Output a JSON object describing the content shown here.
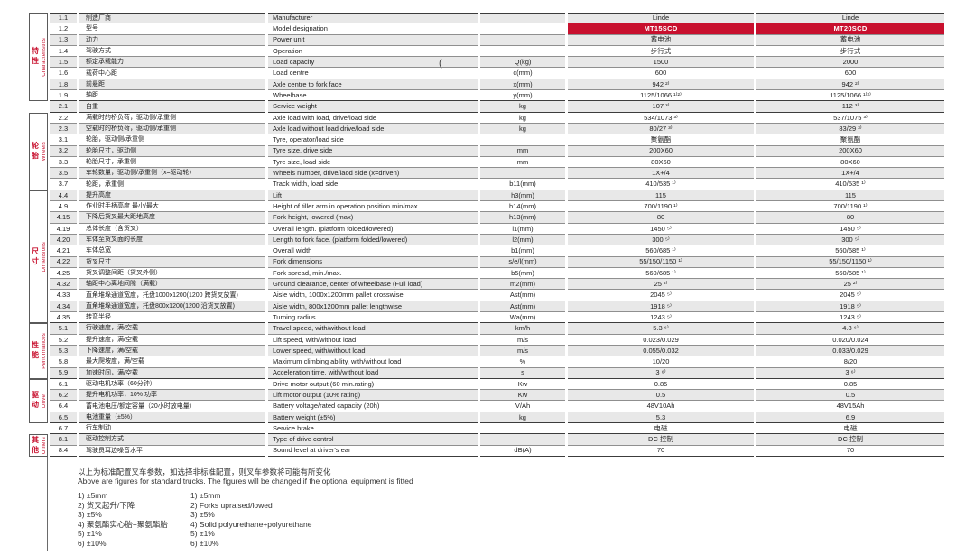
{
  "accent_color": "#c8102e",
  "row_shade_color": "#e8e8e8",
  "stray_mark": "(",
  "table": {
    "sections": [
      {
        "cn": "特性",
        "en": "Characteristics",
        "start": 0,
        "rows": 8
      },
      {
        "cn": "轮胎",
        "en": "Wheels",
        "start": 9,
        "rows": 7
      },
      {
        "cn": "尺寸",
        "en": "Dimensions",
        "start": 16,
        "rows": 12
      },
      {
        "cn": "性能",
        "en": "Performances",
        "start": 28,
        "rows": 5
      },
      {
        "cn": "驱动",
        "en": "Drive",
        "start": 33,
        "rows": 4
      },
      {
        "cn": "其他",
        "en": "Others",
        "start": 38,
        "rows": 2
      }
    ],
    "rows": [
      {
        "no": "1.1",
        "cn": "制造厂商",
        "en": "Manufacturer",
        "unit": "",
        "v1": "Linde",
        "v2": "Linde"
      },
      {
        "no": "1.2",
        "cn": "型号",
        "en": "Model designation",
        "unit": "",
        "v1": "MT15SCD",
        "v2": "MT20SCD",
        "model": true
      },
      {
        "no": "1.3",
        "cn": "动力",
        "en": "Power unit",
        "unit": "",
        "v1": "蓄电池",
        "v2": "蓄电池"
      },
      {
        "no": "1.4",
        "cn": "驾驶方式",
        "en": "Operation",
        "unit": "",
        "v1": "步行式",
        "v2": "步行式"
      },
      {
        "no": "1.5",
        "cn": "额定承载能力",
        "en": "Load capacity",
        "unit": "Q(kg)",
        "v1": "1500",
        "v2": "2000"
      },
      {
        "no": "1.6",
        "cn": "载荷中心距",
        "en": "Load centre",
        "unit": "c(mm)",
        "v1": "600",
        "v2": "600"
      },
      {
        "no": "1.8",
        "cn": "前悬距",
        "en": "Axle centre to fork face",
        "unit": "x(mm)",
        "v1": "942 ²⁾",
        "v2": "942 ²⁾"
      },
      {
        "no": "1.9",
        "cn": "轴距",
        "en": "Wheelbase",
        "unit": "y(mm)",
        "v1": "1125/1066 ¹⁾²⁾",
        "v2": "1125/1066 ¹⁾²⁾",
        "section_end": true
      },
      {
        "no": "2.1",
        "cn": "自重",
        "en": "Service weight",
        "unit": "kg",
        "v1": "107 ³⁾",
        "v2": "112 ³⁾",
        "section_end": true
      },
      {
        "no": "2.2",
        "cn": "满载时的桥负荷，驱动侧/承重侧",
        "en": "Axle load with load, drive/load side",
        "unit": "kg",
        "v1": "534/1073 ³⁾",
        "v2": "537/1075 ³⁾"
      },
      {
        "no": "2.3",
        "cn": "空载时的桥负荷，驱动侧/承重侧",
        "en": "Axle load without load drive/load side",
        "unit": "kg",
        "v1": "80/27 ³⁾",
        "v2": "83/29 ³⁾"
      },
      {
        "no": "3.1",
        "cn": "轮胎，驱动侧/承重侧",
        "en": "Tyre, operator/load side",
        "unit": "",
        "v1": "聚氨酯",
        "v2": "聚氨酯"
      },
      {
        "no": "3.2",
        "cn": "轮胎尺寸，驱动侧",
        "en": "Tyre size, drive side",
        "unit": "mm",
        "v1": "200X60",
        "v2": "200X60"
      },
      {
        "no": "3.3",
        "cn": "轮胎尺寸，承重侧",
        "en": "Tyre size, load side",
        "unit": "mm",
        "v1": "80X60",
        "v2": "80X60"
      },
      {
        "no": "3.5",
        "cn": "车轮数量，驱动侧/承重侧（x=驱动轮）",
        "en": "Wheels number, drive/laod side (x=driven)",
        "unit": "",
        "v1": "1X+/4",
        "v2": "1X+/4"
      },
      {
        "no": "3.7",
        "cn": "轮距，承重侧",
        "en": "Track width, load side",
        "unit": "b11(mm)",
        "v1": "410/535 ¹⁾",
        "v2": "410/535 ¹⁾",
        "section_end": true
      },
      {
        "no": "4.4",
        "cn": "提升高度",
        "en": "Lift",
        "unit": "h3(mm)",
        "v1": "115",
        "v2": "115"
      },
      {
        "no": "4.9",
        "cn": "作业时手柄高度 最小/最大",
        "en": "Height of tiller arm in operation position min/max",
        "unit": "h14(mm)",
        "v1": "700/1190 ¹⁾",
        "v2": "700/1190 ¹⁾"
      },
      {
        "no": "4.15",
        "cn": "下降后货叉最大距地高度",
        "en": "Fork height, lowered (max)",
        "unit": "h13(mm)",
        "v1": "80",
        "v2": "80"
      },
      {
        "no": "4.19",
        "cn": "总体长度（含货叉）",
        "en": "Overall length. (platform folded/lowered)",
        "unit": "l1(mm)",
        "v1": "1450 ⁵⁾",
        "v2": "1450 ⁵⁾"
      },
      {
        "no": "4.20",
        "cn": "车体至货叉面的长度",
        "en": "Length to fork face. (platform folded/lowered)",
        "unit": "l2(mm)",
        "v1": "300 ⁵⁾",
        "v2": "300 ⁵⁾"
      },
      {
        "no": "4.21",
        "cn": "车体总宽",
        "en": "Overall width",
        "unit": "b1(mm)",
        "v1": "560/685 ¹⁾",
        "v2": "560/685 ¹⁾"
      },
      {
        "no": "4.22",
        "cn": "货叉尺寸",
        "en": "Fork dimensions",
        "unit": "s/e/l(mm)",
        "v1": "55/150/1150 ¹⁾",
        "v2": "55/150/1150 ¹⁾"
      },
      {
        "no": "4.25",
        "cn": "货叉调整间距（货叉外侧）",
        "en": "Fork spread, min./max.",
        "unit": "b5(mm)",
        "v1": "560/685 ¹⁾",
        "v2": "560/685 ¹⁾"
      },
      {
        "no": "4.32",
        "cn": "轴距中心离地间隙（满载）",
        "en": "Ground clearance, center of wheelbase (Full load)",
        "unit": "m2(mm)",
        "v1": "25 ²⁾",
        "v2": "25 ²⁾"
      },
      {
        "no": "4.33",
        "cn": "直角堆垛通道宽度，托盘1000x1200(1200 跨货叉放置)",
        "en": "Aisle width, 1000x1200mm pallet crosswise",
        "unit": "Ast(mm)",
        "v1": "2045 ⁵⁾",
        "v2": "2045 ⁵⁾"
      },
      {
        "no": "4.34",
        "cn": "直角堆垛通道宽度，托盘800x1200(1200 沿货叉放置)",
        "en": "Aisle width, 800x1200mm pallet lengthwise",
        "unit": "Ast(mm)",
        "v1": "1918 ⁵⁾",
        "v2": "1918 ⁵⁾"
      },
      {
        "no": "4.35",
        "cn": "转弯半径",
        "en": "Turning radius",
        "unit": "Wa(mm)",
        "v1": "1243 ⁵⁾",
        "v2": "1243 ⁵⁾",
        "section_end": true
      },
      {
        "no": "5.1",
        "cn": "行驶速度，满/空载",
        "en": "Travel speed, with/without load",
        "unit": "km/h",
        "v1": "5.3 ⁶⁾",
        "v2": "4.8 ⁶⁾"
      },
      {
        "no": "5.2",
        "cn": "提升速度，满/空载",
        "en": "Lift speed, with/without load",
        "unit": "m/s",
        "v1": "0.023/0.029",
        "v2": "0.020/0.024"
      },
      {
        "no": "5.3",
        "cn": "下降速度，满/空载",
        "en": "Lower speed, with/without load",
        "unit": "m/s",
        "v1": "0.055/0.032",
        "v2": "0.033/0.029"
      },
      {
        "no": "5.8",
        "cn": "最大爬坡度，满/空载",
        "en": "Maximum climbing ability, with/without load",
        "unit": "%",
        "v1": "10/20",
        "v2": "8/20"
      },
      {
        "no": "5.9",
        "cn": "加速时间，满/空载",
        "en": "Acceleration time, with/without load",
        "unit": "s",
        "v1": "3 ⁶⁾",
        "v2": "3 ⁶⁾",
        "section_end": true
      },
      {
        "no": "6.1",
        "cn": "驱动电机功率（60分钟）",
        "en": "Drive motor output (60 min.rating)",
        "unit": "Kw",
        "v1": "0.85",
        "v2": "0.85"
      },
      {
        "no": "6.2",
        "cn": "提升电机功率，10% 功率",
        "en": "Lift motor output (10% rating)",
        "unit": "Kw",
        "v1": "0.5",
        "v2": "0.5"
      },
      {
        "no": "6.4",
        "cn": "蓄电池电压/额定容量（20小时放电量）",
        "en": "Battery voltage/rated capacity (20h)",
        "unit": "V/Ah",
        "v1": "48V10Ah",
        "v2": "48V15Ah"
      },
      {
        "no": "6.5",
        "cn": "电池重量（±5%）",
        "en": "Battery weight (±5%)",
        "unit": "kg",
        "v1": "5.3",
        "v2": "6.9",
        "section_end": true
      },
      {
        "no": "6.7",
        "cn": "行车制动",
        "en": "Service brake",
        "unit": "",
        "v1": "电磁",
        "v2": "电磁",
        "section_end": true
      },
      {
        "no": "8.1",
        "cn": "驱动控制方式",
        "en": "Type of drive control",
        "unit": "",
        "v1": "DC 控制",
        "v2": "DC 控制"
      },
      {
        "no": "8.4",
        "cn": "驾驶员耳边噪音水平",
        "en": "Sound level at driver's ear",
        "unit": "dB(A)",
        "v1": "70",
        "v2": "70",
        "section_end": true
      }
    ]
  },
  "footer": {
    "note_cn": "以上为标准配置叉车参数，如选择非标准配置，则叉车参数将可能有所变化",
    "note_en": "Above are figures for standard trucks. The figures will be changed if the optional equipment is fitted",
    "footnotes_cn": [
      "1) ±5mm",
      "2) 货叉起升/下降",
      "3) ±5%",
      "4) 聚氨酯实心胎+聚氨酯胎",
      "5) ±1%",
      "6) ±10%"
    ],
    "footnotes_en": [
      "1) ±5mm",
      "2) Forks upraised/lowed",
      "3) ±5%",
      "4) Solid polyurethane+polyurethane",
      "5) ±1%",
      "6) ±10%"
    ]
  }
}
